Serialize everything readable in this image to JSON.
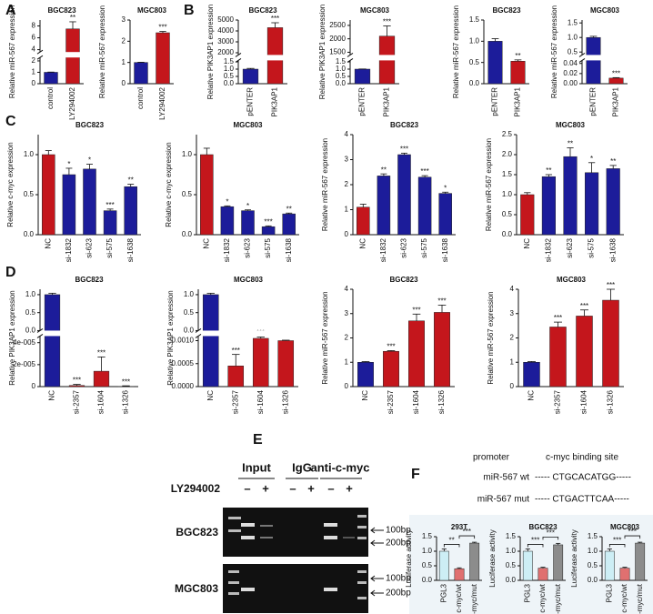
{
  "panels": [
    "A",
    "B",
    "C",
    "D",
    "E",
    "F"
  ],
  "chart_data": [
    {
      "type": "bar",
      "title": "BGC823",
      "ylabel": "Relative miR-567 expression",
      "categories": [
        "control",
        "LY294002"
      ],
      "values": [
        1,
        7.5
      ],
      "errors": [
        0.02,
        1.2
      ],
      "colors": [
        "#1c1c9a",
        "#c4161c"
      ],
      "sig": [
        null,
        "**"
      ],
      "ylim": [
        [
          0,
          2.3
        ],
        [
          3.6,
          9
        ]
      ],
      "yticks": [
        [
          0,
          1,
          2
        ],
        [
          4,
          6,
          8
        ]
      ]
    },
    {
      "type": "bar",
      "title": "MGC803",
      "ylabel": "Relative miR-567 expression",
      "categories": [
        "control",
        "LY294002"
      ],
      "values": [
        1,
        2.4
      ],
      "errors": [
        0.01,
        0.06
      ],
      "colors": [
        "#1c1c9a",
        "#c4161c"
      ],
      "sig": [
        null,
        "***"
      ],
      "ylim": [
        0,
        3
      ],
      "yticks": [
        0,
        1,
        2,
        3
      ]
    },
    {
      "type": "bar",
      "title": "BGC823",
      "ylabel": "Relative PIK3AP1 expression",
      "categories": [
        "pENTER",
        "PIK3AP1"
      ],
      "values": [
        1,
        4300
      ],
      "errors": [
        0.05,
        450
      ],
      "colors": [
        "#1c1c9a",
        "#c4161c"
      ],
      "sig": [
        null,
        "***"
      ],
      "ylim": [
        [
          0,
          1.6
        ],
        [
          1800,
          5000
        ]
      ],
      "yticks": [
        [
          {
            "value": 0,
            "label": "0.0"
          },
          {
            "value": 0.5,
            "label": "0.5"
          },
          {
            "value": 1,
            "label": "1.0"
          },
          {
            "value": 1.5,
            "label": "1.5"
          }
        ],
        [
          2000,
          3000,
          4000,
          5000
        ]
      ]
    },
    {
      "type": "bar",
      "title": "MGC803",
      "ylabel": "Relative PIK3AP1 expression",
      "categories": [
        "pENTER",
        "PIK3AP1"
      ],
      "values": [
        1,
        2100
      ],
      "errors": [
        0.01,
        380
      ],
      "colors": [
        "#1c1c9a",
        "#c4161c"
      ],
      "sig": [
        null,
        "***"
      ],
      "ylim": [
        [
          0,
          1.6
        ],
        [
          1400,
          2700
        ]
      ],
      "yticks": [
        [
          {
            "value": 0,
            "label": "0.0"
          },
          {
            "value": 0.5,
            "label": "0.5"
          },
          {
            "value": 1,
            "label": "1.0"
          },
          {
            "value": 1.5,
            "label": "1.5"
          }
        ],
        [
          1500,
          2000,
          2500
        ]
      ]
    },
    {
      "type": "bar",
      "title": "BGC823",
      "ylabel": "Relative miR-567 expression",
      "categories": [
        "pENTER",
        "PIK3AP1"
      ],
      "values": [
        1.0,
        0.53
      ],
      "errors": [
        0.06,
        0.03
      ],
      "colors": [
        "#1c1c9a",
        "#c4161c"
      ],
      "sig": [
        null,
        "**"
      ],
      "ylim": [
        0,
        1.5
      ],
      "yticks": [
        {
          "value": 0,
          "label": "0.0"
        },
        {
          "value": 0.5,
          "label": "0.5"
        },
        {
          "value": 1,
          "label": "1.0"
        },
        {
          "value": 1.5,
          "label": "1.5"
        }
      ]
    },
    {
      "type": "bar",
      "title": "MGC803",
      "ylabel": "Relative miR-567 expression",
      "categories": [
        "pENTER",
        "PIK3AP1"
      ],
      "values": [
        1.0,
        0.011
      ],
      "errors": [
        0.04,
        0.001
      ],
      "colors": [
        "#1c1c9a",
        "#c4161c"
      ],
      "sig": [
        null,
        "***"
      ],
      "ylim": [
        [
          0,
          0.046
        ],
        [
          0.4,
          1.6
        ]
      ],
      "yticks": [
        [
          {
            "value": 0,
            "label": "0.00"
          },
          {
            "value": 0.02,
            "label": "0.02"
          },
          {
            "value": 0.04,
            "label": "0.04"
          }
        ],
        [
          0.5,
          {
            "value": 1,
            "label": "1.0"
          },
          1.5
        ]
      ]
    },
    {
      "type": "bar",
      "title": "BGC823",
      "ylabel": "Relative c-myc expression",
      "categories": [
        "NC",
        "si-1832",
        "si-623",
        "si-575",
        "si-1638"
      ],
      "values": [
        1.0,
        0.75,
        0.82,
        0.3,
        0.6
      ],
      "errors": [
        0.05,
        0.08,
        0.06,
        0.02,
        0.03
      ],
      "colors": [
        "#c4161c",
        "#1c1c9a",
        "#1c1c9a",
        "#1c1c9a",
        "#1c1c9a"
      ],
      "sig": [
        null,
        "*",
        "*",
        "***",
        "**"
      ],
      "ylim": [
        0,
        1.25
      ],
      "yticks": [
        {
          "value": 0,
          "label": "0.0"
        },
        {
          "value": 0.5,
          "label": "0.5"
        },
        {
          "value": 1,
          "label": "1.0"
        }
      ]
    },
    {
      "type": "bar",
      "title": "MGC803",
      "ylabel": "Relative c-myc expression",
      "categories": [
        "NC",
        "si-1832",
        "si-623",
        "si-575",
        "si-1638"
      ],
      "values": [
        1.0,
        0.35,
        0.3,
        0.1,
        0.26
      ],
      "errors": [
        0.08,
        0.01,
        0.01,
        0.01,
        0.01
      ],
      "colors": [
        "#c4161c",
        "#1c1c9a",
        "#1c1c9a",
        "#1c1c9a",
        "#1c1c9a"
      ],
      "sig": [
        null,
        "*",
        "*",
        "***",
        "**"
      ],
      "ylim": [
        0,
        1.25
      ],
      "yticks": [
        {
          "value": 0,
          "label": "0.0"
        },
        {
          "value": 0.5,
          "label": "0.5"
        },
        {
          "value": 1,
          "label": "1.0"
        }
      ]
    },
    {
      "type": "bar",
      "title": "BGC823",
      "ylabel": "Relative miR-567 expression",
      "categories": [
        "NC",
        "si-1832",
        "si-623",
        "si-575",
        "si-1638"
      ],
      "values": [
        1.1,
        2.35,
        3.2,
        2.3,
        1.65
      ],
      "errors": [
        0.12,
        0.08,
        0.06,
        0.06,
        0.05
      ],
      "colors": [
        "#c4161c",
        "#1c1c9a",
        "#1c1c9a",
        "#1c1c9a",
        "#1c1c9a"
      ],
      "sig": [
        null,
        "**",
        "***",
        "***",
        "*"
      ],
      "ylim": [
        0,
        4
      ],
      "yticks": [
        0,
        1,
        2,
        3,
        4
      ]
    },
    {
      "type": "bar",
      "title": "MGC803",
      "ylabel": "Relative miR-567 expression",
      "categories": [
        "NC",
        "si-1832",
        "si-623",
        "si-575",
        "si-1638"
      ],
      "values": [
        1.0,
        1.45,
        1.95,
        1.55,
        1.65
      ],
      "errors": [
        0.05,
        0.05,
        0.22,
        0.25,
        0.08
      ],
      "colors": [
        "#c4161c",
        "#1c1c9a",
        "#1c1c9a",
        "#1c1c9a",
        "#1c1c9a"
      ],
      "sig": [
        null,
        "**",
        "**",
        "*",
        "**"
      ],
      "ylim": [
        0,
        2.5
      ],
      "yticks": [
        {
          "value": 0,
          "label": "0.0"
        },
        {
          "value": 0.5,
          "label": "0.5"
        },
        {
          "value": 1,
          "label": "1.0"
        },
        {
          "value": 1.5,
          "label": "1.5"
        },
        {
          "value": 2,
          "label": "2.0"
        },
        {
          "value": 2.5,
          "label": "2.5"
        }
      ]
    },
    {
      "type": "bar",
      "title": "BGC823",
      "ylabel": "Relative PIK3AP1 expression",
      "categories": [
        "NC",
        "si-2357",
        "si-1604",
        "si-1326"
      ],
      "values": [
        1.0,
        1e-06,
        1.4e-05,
        2e-07
      ],
      "errors": [
        0.04,
        1e-06,
        1.3e-05,
        5e-07
      ],
      "colors": [
        "#1c1c9a",
        "#c4161c",
        "#c4161c",
        "#c4161c"
      ],
      "sig": [
        null,
        "***",
        "***",
        "***"
      ],
      "ylim": [
        [
          0,
          4.6e-05
        ],
        [
          0,
          1.15
        ]
      ],
      "yticks": [
        [
          0,
          {
            "value": 2e-05,
            "label": "2e-005"
          },
          {
            "value": 4e-05,
            "label": "4e-005"
          }
        ],
        [
          {
            "value": 0,
            "label": "0.0"
          },
          {
            "value": 0.5,
            "label": "0.5"
          },
          {
            "value": 1,
            "label": "1.0"
          }
        ]
      ]
    },
    {
      "type": "bar",
      "title": "MGC803",
      "ylabel": "Relative PIK3AP1 expression",
      "categories": [
        "NC",
        "si-2357",
        "si-1604",
        "si-1326"
      ],
      "values": [
        1.0,
        0.00045,
        0.00105,
        0.001
      ],
      "errors": [
        0.04,
        0.00025,
        3e-05,
        1e-05
      ],
      "colors": [
        "#1c1c9a",
        "#c4161c",
        "#c4161c",
        "#c4161c"
      ],
      "sig": [
        null,
        "***",
        "***",
        "***"
      ],
      "ylim": [
        [
          0,
          0.0011
        ],
        [
          0,
          1.15
        ]
      ],
      "yticks": [
        [
          {
            "value": 0,
            "label": "0.0000"
          },
          {
            "value": 0.0005,
            "label": "0.0005"
          },
          {
            "value": 0.001,
            "label": "0.0010"
          }
        ],
        [
          {
            "value": 0,
            "label": "0.0"
          },
          {
            "value": 0.5,
            "label": "0.5"
          },
          {
            "value": 1,
            "label": "1.0"
          }
        ]
      ]
    },
    {
      "type": "bar",
      "title": "BGC823",
      "ylabel": "Relative miR-567 expression",
      "categories": [
        "NC",
        "si-2357",
        "si-1604",
        "si-1326"
      ],
      "values": [
        1.0,
        1.45,
        2.7,
        3.05
      ],
      "errors": [
        0.03,
        0.03,
        0.28,
        0.3
      ],
      "colors": [
        "#1c1c9a",
        "#c4161c",
        "#c4161c",
        "#c4161c"
      ],
      "sig": [
        null,
        "***",
        "***",
        "***"
      ],
      "ylim": [
        0,
        4
      ],
      "yticks": [
        0,
        1,
        2,
        3,
        4
      ]
    },
    {
      "type": "bar",
      "title": "MGC803",
      "ylabel": "Relative miR-567 expression",
      "categories": [
        "NC",
        "si-2357",
        "si-1604",
        "si-1326"
      ],
      "values": [
        1.0,
        2.45,
        2.9,
        3.55
      ],
      "errors": [
        0.03,
        0.2,
        0.25,
        0.45
      ],
      "colors": [
        "#1c1c9a",
        "#c4161c",
        "#c4161c",
        "#c4161c"
      ],
      "sig": [
        null,
        "***",
        "***",
        "***"
      ],
      "ylim": [
        0,
        4
      ],
      "yticks": [
        0,
        1,
        2,
        3,
        4
      ]
    },
    {
      "type": "bar",
      "title": "293T",
      "ylabel": "Luciferase activity",
      "categories": [
        "PGL3",
        "c-myc/wt",
        "c-myc/mut"
      ],
      "values": [
        1.0,
        0.4,
        1.28
      ],
      "errors": [
        0.08,
        0.03,
        0.03
      ],
      "colors": [
        "#cdeef5",
        "#e07070",
        "#8c8c8c"
      ],
      "comparisons": [
        "**",
        "***"
      ],
      "ylim": [
        0,
        1.5
      ],
      "yticks": [
        {
          "value": 0,
          "label": "0.0"
        },
        {
          "value": 0.5,
          "label": "0.5"
        },
        {
          "value": 1,
          "label": "1.0"
        },
        {
          "value": 1.5,
          "label": "1.5"
        }
      ]
    },
    {
      "type": "bar",
      "title": "BGC823",
      "ylabel": "Luciferase activity",
      "categories": [
        "PGL3",
        "c-myc/wt",
        "c-myc/mut"
      ],
      "values": [
        1.0,
        0.42,
        1.22
      ],
      "errors": [
        0.08,
        0.03,
        0.05
      ],
      "colors": [
        "#cdeef5",
        "#e07070",
        "#8c8c8c"
      ],
      "comparisons": [
        "***",
        "***"
      ],
      "ylim": [
        0,
        1.5
      ],
      "yticks": [
        {
          "value": 0,
          "label": "0.0"
        },
        {
          "value": 0.5,
          "label": "0.5"
        },
        {
          "value": 1,
          "label": "1.0"
        },
        {
          "value": 1.5,
          "label": "1.5"
        }
      ]
    },
    {
      "type": "bar",
      "title": "MGC803",
      "ylabel": "Luciferase activity",
      "categories": [
        "PGL3",
        "c-myc/wt",
        "c-myc/mut"
      ],
      "values": [
        1.0,
        0.42,
        1.28
      ],
      "errors": [
        0.08,
        0.03,
        0.03
      ],
      "colors": [
        "#cdeef5",
        "#e07070",
        "#8c8c8c"
      ],
      "comparisons": [
        "***",
        "***"
      ],
      "ylim": [
        0,
        1.5
      ],
      "yticks": [
        {
          "value": 0,
          "label": "0.0"
        },
        {
          "value": 0.5,
          "label": "0.5"
        },
        {
          "value": 1,
          "label": "1.0"
        },
        {
          "value": 1.5,
          "label": "1.5"
        }
      ]
    }
  ],
  "gel": {
    "headers": [
      "Input",
      "IgG",
      "anti-c-myc"
    ],
    "treatment": "LY294002",
    "signs": [
      "–",
      "+",
      "–",
      "+",
      "–",
      "+"
    ],
    "rows": [
      "BGC823",
      "MGC803"
    ],
    "markers": [
      "100bp",
      "200bp"
    ]
  },
  "binding_sites": {
    "headers": [
      "promoter",
      "c-myc binding site"
    ],
    "rows": [
      [
        "miR-567 wt",
        "----- CTGCACATGG-----"
      ],
      [
        "miR-567 mut",
        "----- CTGACTTCAA-----"
      ]
    ]
  }
}
